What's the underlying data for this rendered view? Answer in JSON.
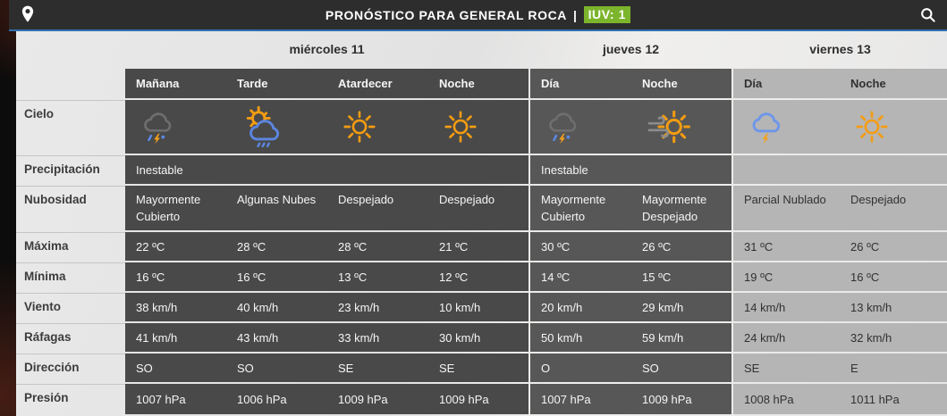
{
  "topbar": {
    "title": "PRONÓSTICO PARA GENERAL ROCA",
    "separator": "|",
    "uv_label": "IUV: 1",
    "uv_color": "#7cb52c",
    "icons": {
      "left": "location-pin-icon",
      "right": "search-icon"
    }
  },
  "colors": {
    "accent_blue": "#2e6fb0",
    "dark_cell_a": "#494949",
    "dark_cell_b": "#575757",
    "light_cell": "#b5b5b5"
  },
  "table": {
    "row_labels": [
      "Cielo",
      "Precipitación",
      "Nubosidad",
      "Máxima",
      "Mínima",
      "Viento",
      "Ráfagas",
      "Dirección",
      "Presión"
    ],
    "row_keys": [
      "cielo",
      "precipitacion",
      "nubosidad",
      "maxima",
      "minima",
      "viento",
      "rafagas",
      "direccion",
      "presion"
    ],
    "groups": [
      {
        "day": "miércoles 11",
        "theme": "a",
        "columns": [
          "Mañana",
          "Tarde",
          "Atardecer",
          "Noche"
        ],
        "cielo": [
          "storm",
          "sun-cloud-rain",
          "sun",
          "sun"
        ],
        "precipitacion": "Inestable",
        "nubosidad": [
          "Mayormente Cubierto",
          "Algunas Nubes",
          "Despejado",
          "Despejado"
        ],
        "maxima": [
          "22 ºC",
          "28 ºC",
          "28 ºC",
          "21 ºC"
        ],
        "minima": [
          "16 ºC",
          "16 ºC",
          "13 ºC",
          "12 ºC"
        ],
        "viento": [
          "38 km/h",
          "40 km/h",
          "23 km/h",
          "10 km/h"
        ],
        "rafagas": [
          "41 km/h",
          "43 km/h",
          "33 km/h",
          "30 km/h"
        ],
        "direccion": [
          "SO",
          "SO",
          "SE",
          "SE"
        ],
        "presion": [
          "1007 hPa",
          "1006 hPa",
          "1009 hPa",
          "1009 hPa"
        ]
      },
      {
        "day": "jueves 12",
        "theme": "b",
        "columns": [
          "Día",
          "Noche"
        ],
        "cielo": [
          "storm",
          "sun-wind"
        ],
        "precipitacion": "Inestable",
        "nubosidad": [
          "Mayormente Cubierto",
          "Mayormente Despejado"
        ],
        "maxima": [
          "30 ºC",
          "26 ºC"
        ],
        "minima": [
          "14 ºC",
          "15 ºC"
        ],
        "viento": [
          "20 km/h",
          "29 km/h"
        ],
        "rafagas": [
          "50 km/h",
          "59 km/h"
        ],
        "direccion": [
          "O",
          "SO"
        ],
        "presion": [
          "1007 hPa",
          "1009 hPa"
        ]
      },
      {
        "day": "viernes 13",
        "theme": "l",
        "columns": [
          "Día",
          "Noche"
        ],
        "cielo": [
          "cloud-lightning",
          "sun"
        ],
        "precipitacion": "",
        "nubosidad": [
          "Parcial Nublado",
          "Despejado"
        ],
        "maxima": [
          "31 ºC",
          "26 ºC"
        ],
        "minima": [
          "19 ºC",
          "16 ºC"
        ],
        "viento": [
          "14 km/h",
          "13 km/h"
        ],
        "rafagas": [
          "24 km/h",
          "32 km/h"
        ],
        "direccion": [
          "SE",
          "E"
        ],
        "presion": [
          "1008 hPa",
          "1011 hPa"
        ]
      }
    ]
  }
}
